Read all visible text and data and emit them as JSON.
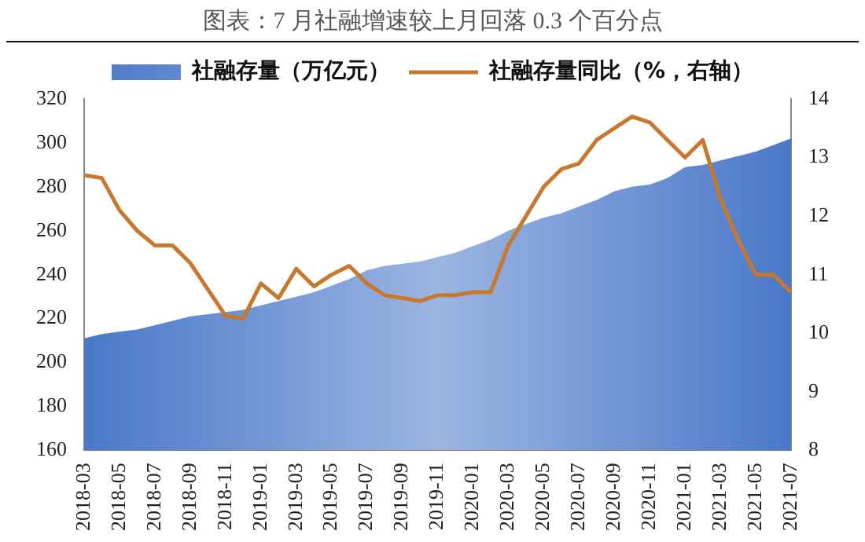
{
  "chart_data": {
    "type": "area",
    "title": "图表：7 月社融增速较上月回落 0.3 个百分点",
    "categories": [
      "2018-03",
      null,
      "2018-05",
      null,
      "2018-07",
      null,
      "2018-09",
      null,
      "2018-11",
      null,
      "2019-01",
      null,
      "2019-03",
      null,
      "2019-05",
      null,
      "2019-07",
      null,
      "2019-09",
      null,
      "2019-11",
      null,
      "2020-01",
      null,
      "2020-03",
      null,
      "2020-05",
      null,
      "2020-07",
      null,
      "2020-09",
      null,
      "2020-11",
      null,
      "2021-01",
      null,
      "2021-03",
      null,
      "2021-05",
      null,
      "2021-07"
    ],
    "series": [
      {
        "name": "社融存量（万亿元）",
        "color": "#4a78c8",
        "values": [
          211,
          213,
          214,
          215,
          217,
          219,
          221,
          222,
          223,
          224,
          226,
          228,
          230,
          232,
          235,
          238,
          242,
          244,
          245,
          246,
          248,
          250,
          253,
          256,
          260,
          263,
          266,
          268,
          271,
          274,
          278,
          280,
          281,
          284,
          289,
          290,
          292,
          294,
          296,
          299,
          302
        ]
      },
      {
        "name": "社融存量同比（%，右轴）",
        "type": "line",
        "axis": "y2",
        "color": "#c8782e",
        "values": [
          12.7,
          12.65,
          12.1,
          11.75,
          11.5,
          11.5,
          11.2,
          10.75,
          10.3,
          10.25,
          10.85,
          10.6,
          11.1,
          10.8,
          11.0,
          11.15,
          10.85,
          10.65,
          10.6,
          10.55,
          10.65,
          10.65,
          10.7,
          10.7,
          11.5,
          12.0,
          12.5,
          12.8,
          12.9,
          13.3,
          13.5,
          13.7,
          13.6,
          13.3,
          13.0,
          13.3,
          12.3,
          11.6,
          11.0,
          11.0,
          10.7
        ]
      }
    ],
    "ylim": [
      160,
      320
    ],
    "yticks": [
      160,
      180,
      200,
      220,
      240,
      260,
      280,
      300,
      320
    ],
    "y2lim": [
      8,
      14
    ],
    "y2ticks": [
      8,
      9,
      10,
      11,
      12,
      13,
      14
    ],
    "grid": false,
    "legend": "top",
    "marker": "none",
    "line_style": "solid"
  }
}
